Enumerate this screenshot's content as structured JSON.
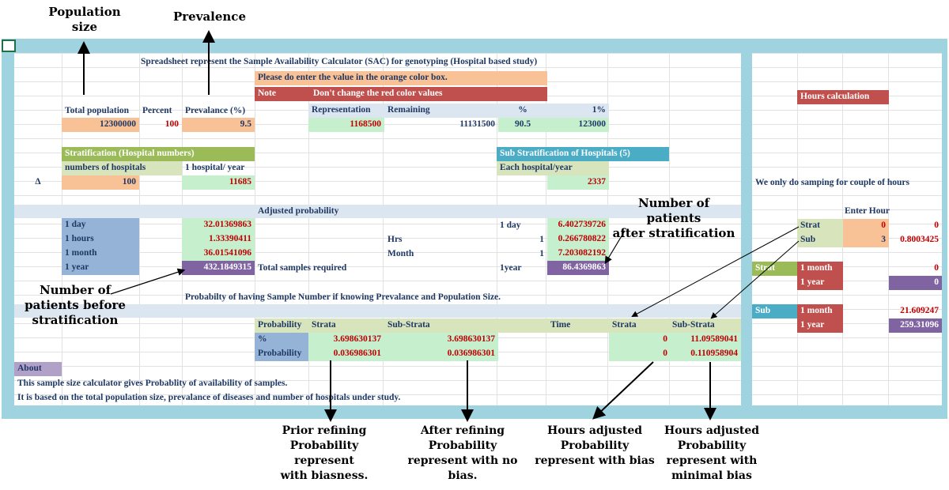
{
  "colors": {
    "frame": "#9fd3e0",
    "orange": "#f9c196",
    "red": "#c0504d",
    "green": "#c6efce",
    "olive": "#9bbb59",
    "light_green": "#d8e4bc",
    "blue_header": "#4bacc6",
    "steel": "#95b3d7",
    "purple": "#8064a2",
    "light_purple": "#b1a0c7",
    "band": "#dce6f1",
    "text_navy": "#1f3864",
    "text_red": "#c00000"
  },
  "annotations": {
    "population_size": "Population\nsize",
    "prevalence": "Prevalence",
    "number_after": "Number of patients\nafter stratification",
    "number_before": "Number of\npatients before\nstratification",
    "prior_refining": "Prior refining\nProbability represent\nwith biasness.",
    "after_refining": "After refining\nProbability\nrepresent with no\nbias.",
    "hours_bias": "Hours adjusted\nProbability\nrepresent with bias",
    "hours_minimal": "Hours adjusted\nProbability\nrepresent with\nminimal bias"
  },
  "sheet": {
    "title": "Spreadsheet represent the Sample Availability Calculator (SAC) for genotyping (Hospital based study)",
    "instruction": "Please do enter the value in the orange color box.",
    "note_label": "Note",
    "note_text": "Don't change the red color values",
    "headers": {
      "total_population": "Total population",
      "percent": "Percent",
      "prevalance": "Prevalance (%)",
      "representation": "Representation",
      "remaining": "Remaining",
      "pct_sign": "%",
      "one_pct": "1%"
    },
    "values": {
      "total_population": "12300000",
      "percent": "100",
      "prevalance": "9.5",
      "representation": "1168500",
      "remaining": "11131500",
      "pct": "90.5",
      "one_pct": "123000"
    },
    "stratification": {
      "title": "Stratification (Hospital numbers)",
      "hospitals_label": "numbers of hospitals",
      "per_year_label": "1 hospital/ year",
      "delta": "Δ",
      "hospitals": "100",
      "per_year": "11685"
    },
    "sub_stratification": {
      "title": "Sub Stratification of Hospitals (5)",
      "each_label": "Each hospital/year",
      "each_value": "2337"
    },
    "adjusted": {
      "title": "Adjusted probability",
      "left": [
        {
          "label": "1 day",
          "value": "32.01369863"
        },
        {
          "label": "1 hours",
          "value": "1.33390411"
        },
        {
          "label": "1 month",
          "value": "36.01541096"
        },
        {
          "label": "1 year",
          "value": "432.1849315"
        }
      ],
      "hrs_label": "Hrs",
      "month_label": "Month",
      "total_label": "Total samples required",
      "right": [
        {
          "label": "1 day",
          "factor": "",
          "value": "6.402739726"
        },
        {
          "label": "",
          "factor": "1",
          "value": "0.266780822"
        },
        {
          "label": "",
          "factor": "1",
          "value": "7.203082192"
        },
        {
          "label": "1year",
          "factor": "",
          "value": "86.4369863"
        }
      ]
    },
    "probability": {
      "title": "Probabilty of having Sample Number if knowing Prevalance and Population Size.",
      "headers": [
        "Probability",
        "Strata",
        "Sub-Strata",
        "Time",
        "Strata",
        "Sub-Strata"
      ],
      "rows": [
        {
          "label": "%",
          "strata": "3.698630137",
          "sub": "3.698630137",
          "t_strata": "0",
          "t_sub": "11.09589041"
        },
        {
          "label": "Probability",
          "strata": "0.036986301",
          "sub": "0.036986301",
          "t_strata": "0",
          "t_sub": "0.110958904"
        }
      ]
    },
    "about": {
      "label": "About",
      "line1": "This sample size calculator gives Probablity of availability of samples.",
      "line2": "It is based on the total population size, prevalance of diseases and number of hospitals under study."
    },
    "hours": {
      "title": "Hours calculation",
      "note": "We only do samping for couple of hours",
      "enter_hour": "Enter Hour",
      "strat_label": "Strat",
      "strat_hours": "0",
      "strat_value": "0",
      "sub_label": "Sub",
      "sub_hours": "3",
      "sub_value": "0.8003425",
      "strat_block": {
        "label": "Strat",
        "month": "1 month",
        "year": "1 year",
        "month_value": "0",
        "year_value": "0"
      },
      "sub_block": {
        "label": "Sub",
        "month": "1 month",
        "year": "1 year",
        "month_value": "21.609247",
        "year_value": "259.31096"
      }
    }
  }
}
